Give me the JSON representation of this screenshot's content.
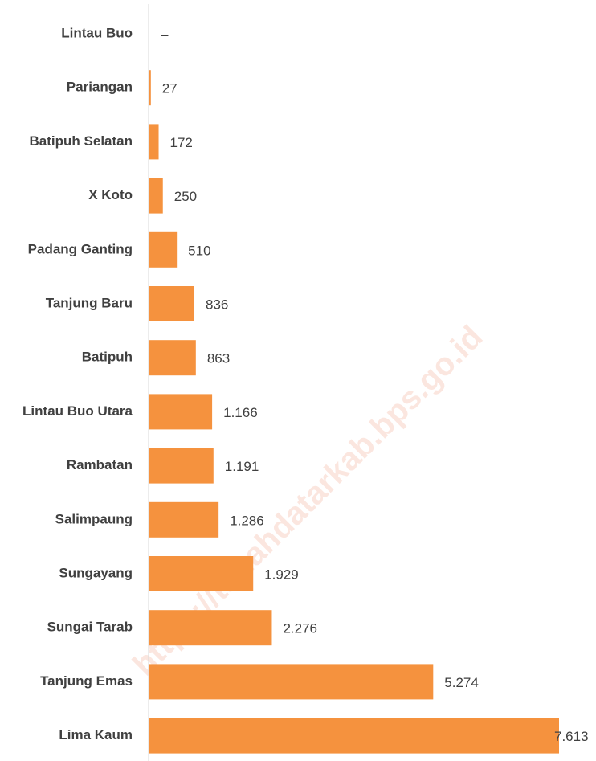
{
  "chart_data": {
    "type": "hbar",
    "categories": [
      "Lintau Buo",
      "Pariangan",
      "Batipuh Selatan",
      "X Koto",
      "Padang Ganting",
      "Tanjung Baru",
      "Batipuh",
      "Lintau Buo Utara",
      "Rambatan",
      "Salimpaung",
      "Sungayang",
      "Sungai Tarab",
      "Tanjung Emas",
      "Lima Kaum"
    ],
    "values": [
      null,
      27,
      172,
      250,
      510,
      836,
      863,
      1166,
      1191,
      1286,
      1929,
      2276,
      5274,
      7613
    ],
    "value_labels": [
      "–",
      "27",
      "172",
      "250",
      "510",
      "836",
      "863",
      "1.166",
      "1.191",
      "1.286",
      "1.929",
      "2.276",
      "5.274",
      "7.613"
    ],
    "color": "#f5923e",
    "watermark": "https://tanahdatarkab.bps.go.id"
  }
}
